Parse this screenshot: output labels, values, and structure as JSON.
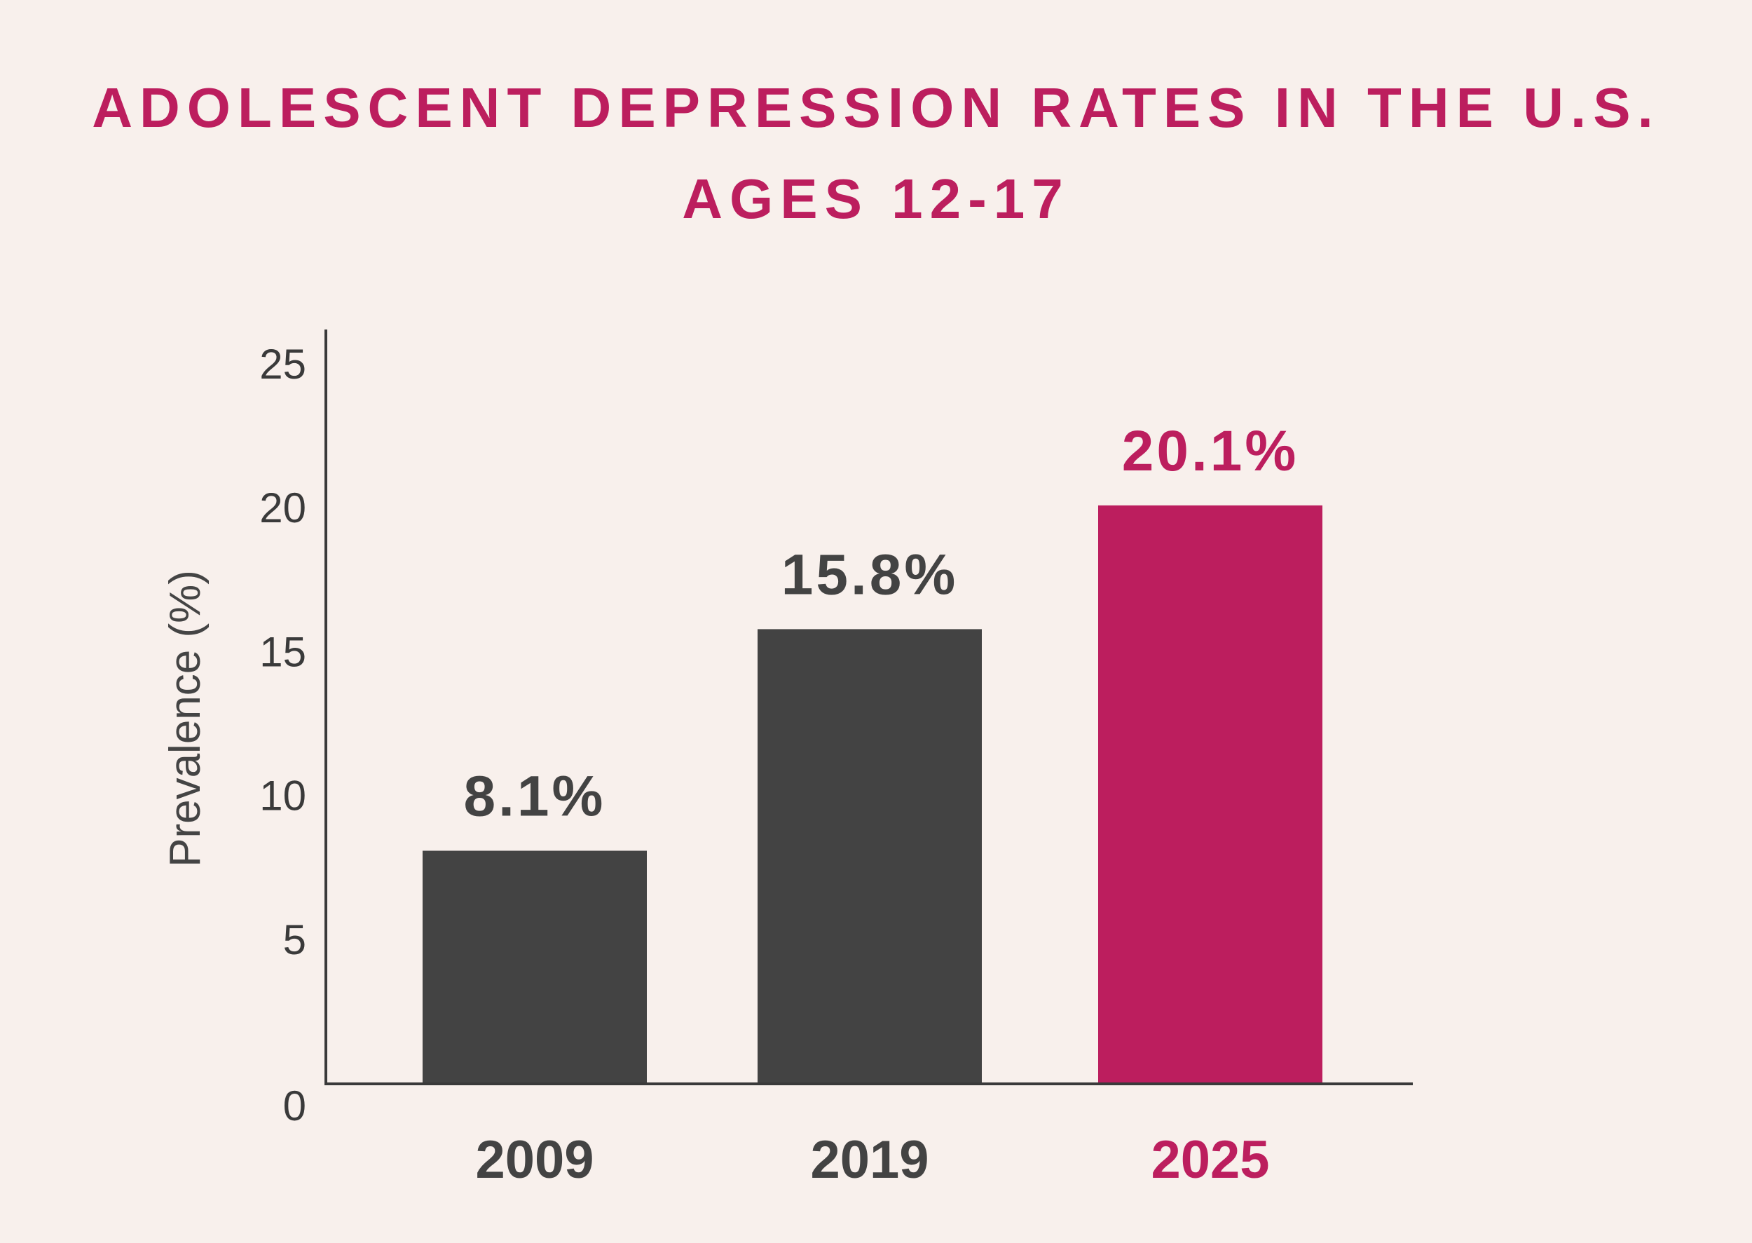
{
  "title_line1": "ADOLESCENT DEPRESSION RATES IN THE U.S.",
  "title_line2": "AGES 12-17",
  "colors": {
    "background": "#F8F0EC",
    "accent": "#BC1E5E",
    "bar": "#434343",
    "text": "#3A3A3A"
  },
  "chart_data": {
    "type": "bar",
    "title": "ADOLESCENT DEPRESSION RATES IN THE U.S. AGES 12-17",
    "xlabel": "",
    "ylabel": "Prevalence (%)",
    "ylim": [
      0,
      26
    ],
    "yticks": [
      0,
      5,
      10,
      15,
      20,
      25
    ],
    "categories": [
      "2009",
      "2019",
      "2025"
    ],
    "values": [
      8.1,
      15.8,
      20.1
    ],
    "data_labels": [
      "8.1%",
      "15.8%",
      "20.1%"
    ],
    "highlight_index": 2
  }
}
